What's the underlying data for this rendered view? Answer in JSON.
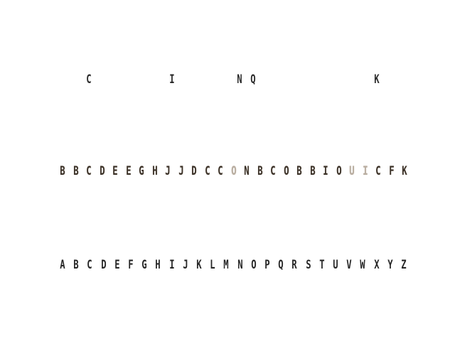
{
  "rows": {
    "top": {
      "letters": [
        "C",
        "I",
        "N",
        "Q",
        "K"
      ]
    },
    "middle": {
      "letters": [
        "B",
        "B",
        "C",
        "D",
        "E",
        "E",
        "G",
        "H",
        "J",
        "J",
        "D",
        "C",
        "C",
        "O",
        "N",
        "B",
        "C",
        "O",
        "B",
        "B",
        "I",
        "O",
        "U",
        "I",
        "C",
        "F",
        "K"
      ],
      "faint": [
        false,
        false,
        false,
        false,
        false,
        false,
        false,
        false,
        false,
        false,
        false,
        false,
        false,
        true,
        false,
        false,
        false,
        false,
        false,
        false,
        false,
        false,
        true,
        true,
        false,
        false,
        false
      ]
    },
    "bottom": {
      "letters": [
        "A",
        "B",
        "C",
        "D",
        "E",
        "F",
        "G",
        "H",
        "I",
        "J",
        "K",
        "L",
        "M",
        "N",
        "O",
        "P",
        "Q",
        "R",
        "S",
        "T",
        "U",
        "V",
        "W",
        "X",
        "Y",
        "Z"
      ]
    }
  },
  "colors": {
    "background": "#ffffff",
    "ink": "#262626",
    "tinted_ink": "#3a3128"
  }
}
